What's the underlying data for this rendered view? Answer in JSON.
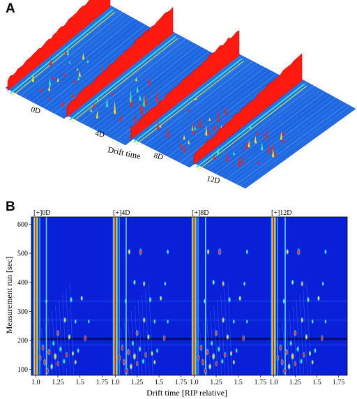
{
  "panel_a": {
    "letter": "A",
    "samples": [
      "0D",
      "4D",
      "8D",
      "12D"
    ],
    "axis_label": "Drift time"
  },
  "panel_b": {
    "letter": "B",
    "chart_data": {
      "type": "heatmap",
      "panels": [
        "[+]0D",
        "[+]4D",
        "[+]8D",
        "[+]12D"
      ],
      "xlabel": "Drift time [RIP relative]",
      "ylabel": "Measurement run [sec]",
      "xlim": [
        0.95,
        1.85
      ],
      "ylim": [
        80,
        625
      ],
      "x_ticks": [
        "1.0",
        "1.25",
        "1.5",
        "1.75"
      ],
      "y_ticks": [
        100,
        200,
        300,
        400,
        500,
        600
      ],
      "colors": {
        "background": "#0a1fd8",
        "rip": "#e02020"
      }
    }
  }
}
